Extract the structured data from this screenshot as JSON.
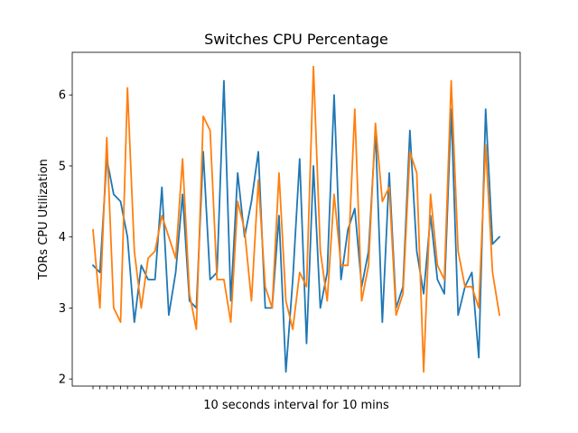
{
  "chart_data": {
    "type": "line",
    "title": "Switches CPU Percentage",
    "xlabel": "10 seconds interval for 10 mins",
    "ylabel": "TORs CPU Utilization",
    "ylim": [
      1.9,
      6.6
    ],
    "yticks": [
      2,
      3,
      4,
      5,
      6
    ],
    "x_tick_labels_shown": false,
    "grid": false,
    "legend": "none",
    "series": [
      {
        "color": "#1f77b4",
        "values": [
          3.6,
          3.5,
          5.1,
          4.6,
          4.5,
          4.0,
          2.8,
          3.6,
          3.4,
          3.4,
          4.7,
          2.9,
          3.5,
          4.6,
          3.1,
          3.0,
          5.2,
          3.4,
          3.5,
          6.2,
          3.1,
          4.9,
          4.0,
          4.5,
          5.2,
          3.0,
          3.0,
          4.3,
          2.1,
          3.4,
          5.1,
          2.5,
          5.0,
          3.0,
          3.5,
          6.0,
          3.4,
          4.1,
          4.4,
          3.3,
          3.8,
          5.5,
          2.8,
          4.9,
          3.0,
          3.3,
          5.5,
          3.8,
          3.2,
          4.3,
          3.4,
          3.2,
          5.8,
          2.9,
          3.3,
          3.5,
          2.3,
          5.8,
          3.9,
          4.0
        ]
      },
      {
        "color": "#ff7f0e",
        "values": [
          4.1,
          3.0,
          5.4,
          3.0,
          2.8,
          6.1,
          3.8,
          3.0,
          3.7,
          3.8,
          4.3,
          4.0,
          3.7,
          5.1,
          3.2,
          2.7,
          5.7,
          5.5,
          3.4,
          3.4,
          2.8,
          4.5,
          4.1,
          3.1,
          4.8,
          3.3,
          3.0,
          4.9,
          3.1,
          2.7,
          3.5,
          3.3,
          6.4,
          3.8,
          3.1,
          4.6,
          3.6,
          3.6,
          5.8,
          3.1,
          3.6,
          5.6,
          4.5,
          4.7,
          2.9,
          3.2,
          5.2,
          4.9,
          2.1,
          4.6,
          3.6,
          3.4,
          6.2,
          3.8,
          3.3,
          3.3,
          3.0,
          5.3,
          3.5,
          2.9
        ]
      }
    ]
  }
}
